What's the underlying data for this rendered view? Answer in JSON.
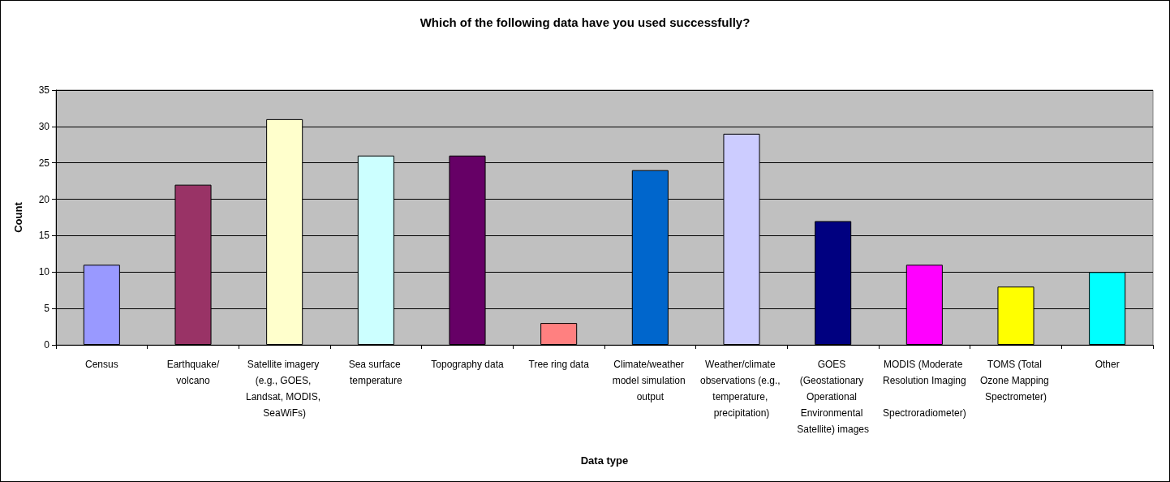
{
  "chart_data": {
    "type": "bar",
    "title": "Which of the following data have you used successfully?",
    "xlabel": "Data type",
    "ylabel": "Count",
    "categories": [
      "Census",
      "Earthquake/volcano",
      "Satellite imagery (e.g., GOES, Landsat, MODIS, SeaWiFs)",
      "Sea surface temperature",
      "Topography data",
      "Tree ring data",
      "Climate/weather model simulation output",
      "Weather/climate observations (e.g., temperature, precipitation)",
      "GOES (Geostationary Operational Environmental Satellite) images",
      "MODIS (Moderate Resolution Imaging Spectroradiometer)",
      "TOMS (Total Ozone Mapping Spectrometer)",
      "Other"
    ],
    "values": [
      11,
      22,
      31,
      26,
      26,
      3,
      24,
      29,
      17,
      11,
      8,
      10
    ],
    "colors": [
      "#9999ff",
      "#993366",
      "#ffffcc",
      "#ccffff",
      "#660066",
      "#ff8080",
      "#0066cc",
      "#ccccff",
      "#000080",
      "#ff00ff",
      "#ffff00",
      "#00ffff"
    ],
    "ylim": [
      0,
      35
    ],
    "yticks": [
      0,
      5,
      10,
      15,
      20,
      25,
      30,
      35
    ],
    "grid": "y"
  }
}
